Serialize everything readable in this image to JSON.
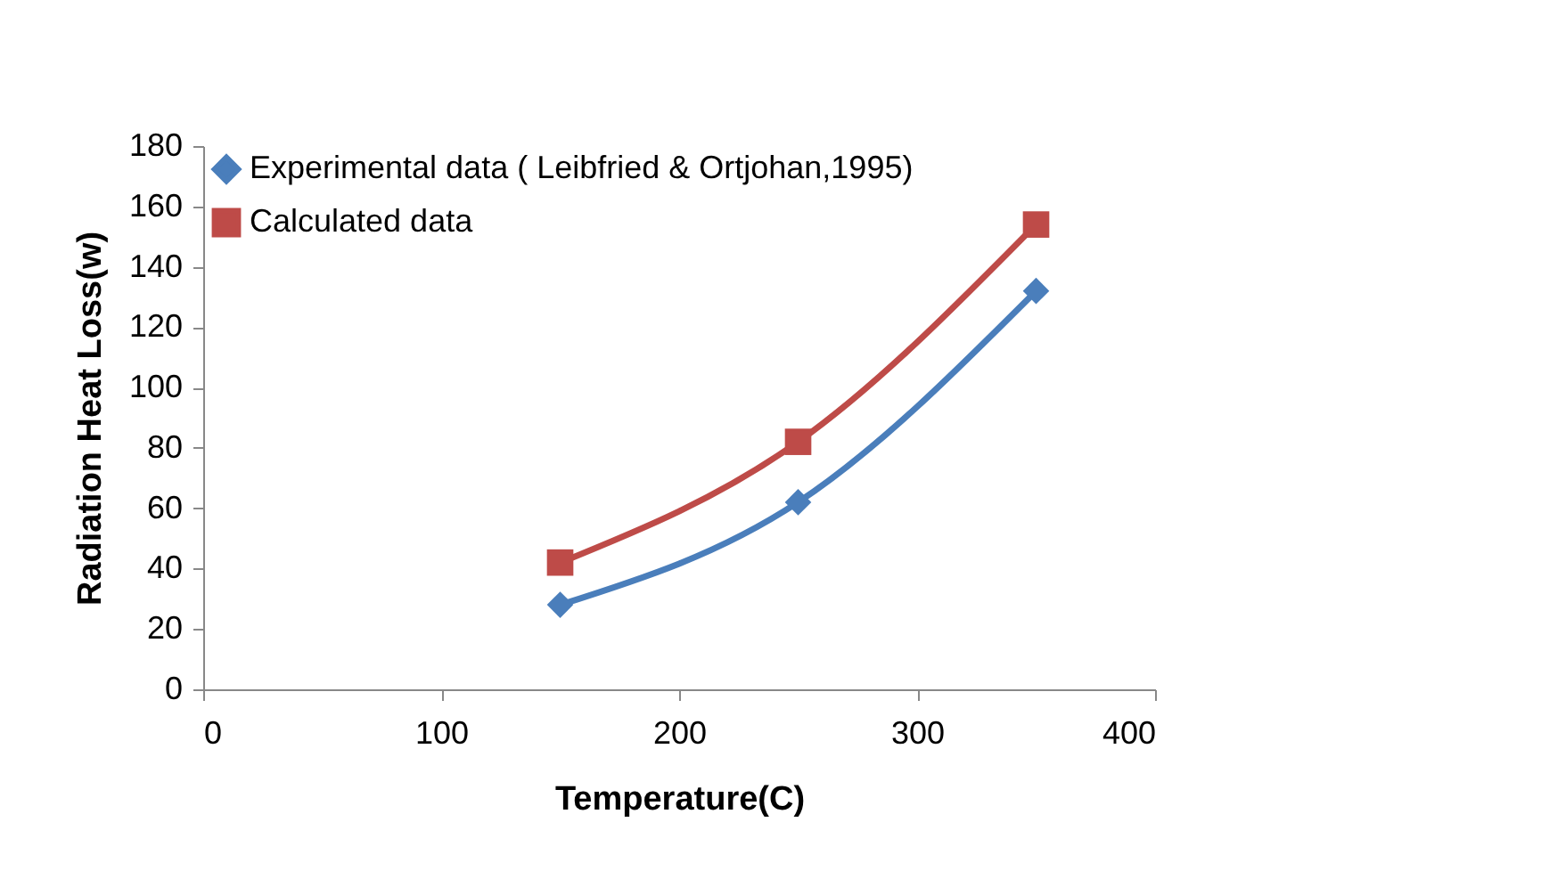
{
  "chart_data": {
    "type": "line",
    "xlabel": "Temperature(C)",
    "ylabel": "Radiation Heat Loss(w)",
    "x": [
      150,
      250,
      350
    ],
    "series": [
      {
        "name": "Experimental data ( Leibfried & Ortjohan,1995)",
        "color": "#4a7ebb",
        "marker": "diamond",
        "values": [
          28,
          62,
          132
        ]
      },
      {
        "name": "Calculated data",
        "color": "#be4b48",
        "marker": "square",
        "values": [
          42,
          82,
          154
        ]
      }
    ],
    "xlim": [
      0,
      400
    ],
    "xticks": [
      0,
      100,
      200,
      300,
      400
    ],
    "ylim": [
      0,
      180
    ],
    "yticks": [
      0,
      20,
      40,
      60,
      80,
      100,
      120,
      140,
      160,
      180
    ],
    "grid": false,
    "legend": "top left",
    "line_style": "solid"
  }
}
